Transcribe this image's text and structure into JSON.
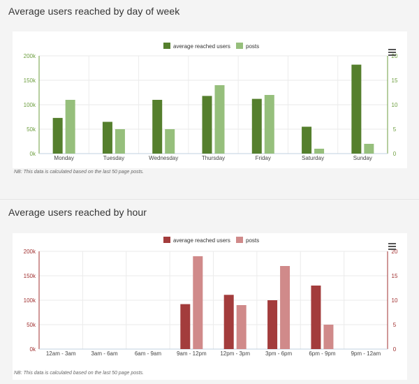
{
  "section1": {
    "title": "Average users reached by day of week"
  },
  "section2": {
    "title": "Average users reached by hour"
  },
  "legend_labels": {
    "users": "average reached users",
    "posts": "posts"
  },
  "note": "NB: This data is calculated based on the last 50 page posts.",
  "icons": {
    "menu": "hamburger-menu-icon"
  },
  "chart_data": [
    {
      "type": "bar",
      "categories": [
        "Monday",
        "Tuesday",
        "Wednesday",
        "Thursday",
        "Friday",
        "Saturday",
        "Sunday"
      ],
      "series": [
        {
          "name": "average reached users",
          "axis": "left",
          "color": "#557f2d",
          "values": [
            73000,
            65000,
            110000,
            118000,
            112000,
            55000,
            182000
          ]
        },
        {
          "name": "posts",
          "axis": "right",
          "color": "#96bf7c",
          "values": [
            11,
            5,
            5,
            14,
            12,
            1,
            2
          ]
        }
      ],
      "ylim_left": [
        0,
        200000
      ],
      "yticks_left": [
        "0k",
        "50k",
        "100k",
        "150k",
        "200k"
      ],
      "ylim_right": [
        0,
        20
      ],
      "yticks_right": [
        "0",
        "5",
        "10",
        "15",
        "20"
      ],
      "axis_color": "#6d9e3f",
      "legend": "top-center",
      "grid": true
    },
    {
      "type": "bar",
      "categories": [
        "12am - 3am",
        "3am - 6am",
        "6am - 9am",
        "9am - 12pm",
        "12pm - 3pm",
        "3pm - 6pm",
        "6pm - 9pm",
        "9pm - 12am"
      ],
      "series": [
        {
          "name": "average reached users",
          "axis": "left",
          "color": "#a33c3c",
          "values": [
            0,
            0,
            0,
            92000,
            111000,
            100000,
            130000,
            0
          ]
        },
        {
          "name": "posts",
          "axis": "right",
          "color": "#d08a8a",
          "values": [
            0,
            0,
            0,
            19,
            9,
            17,
            5,
            0
          ]
        }
      ],
      "ylim_left": [
        0,
        200000
      ],
      "yticks_left": [
        "0k",
        "50k",
        "100k",
        "150k",
        "200k"
      ],
      "ylim_right": [
        0,
        20
      ],
      "yticks_right": [
        "0",
        "5",
        "10",
        "15",
        "20"
      ],
      "axis_color": "#a03030",
      "legend": "top-center",
      "grid": true
    }
  ]
}
